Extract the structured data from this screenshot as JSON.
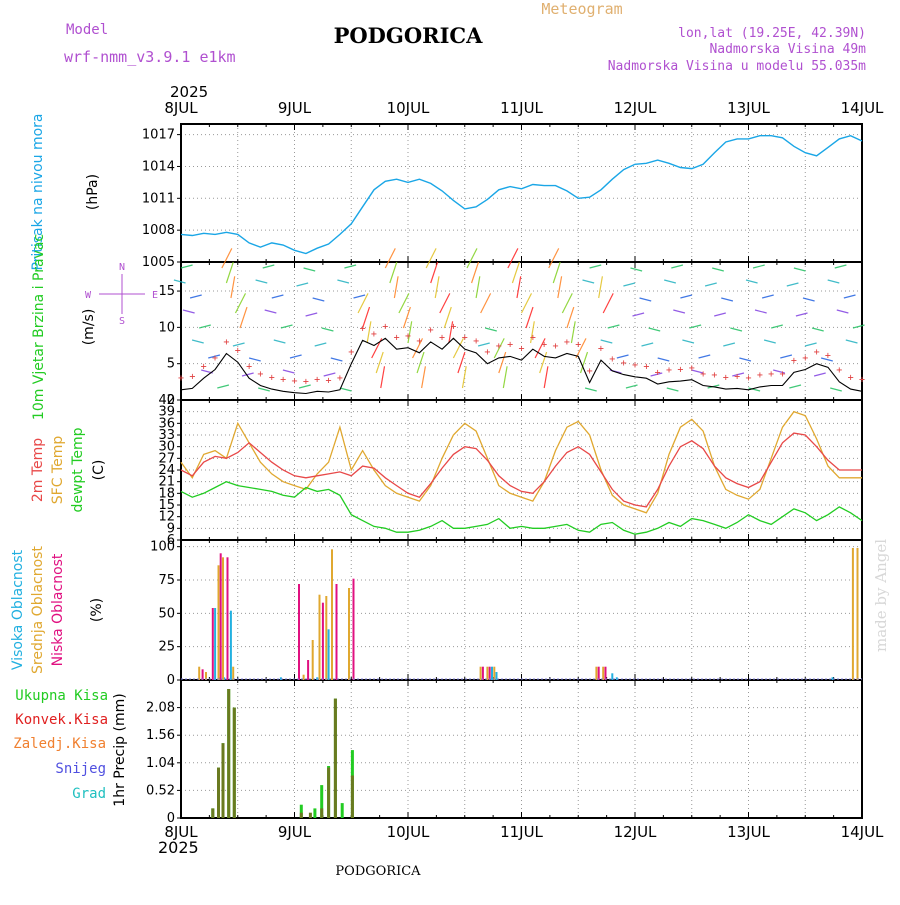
{
  "header": {
    "model_label": "Model",
    "model_name": "wrf-nmm_v3.9.1 e1km",
    "city": "PODGORICA",
    "meteogram": "Meteogram",
    "lonlat": "lon,lat (19.25E, 42.39N)",
    "elevation": "Nadmorska Visina 49m",
    "model_elevation": "Nadmorska Visina u modelu 55.035m",
    "year_top": "2025",
    "year_bottom": "2025",
    "footer_city": "PODGORICA",
    "credit": "made by Angel"
  },
  "colors": {
    "pressure": "#1aa6e6",
    "wind_speed": "#000000",
    "temp_2m": "#e84848",
    "temp_sfc": "#e0a830",
    "dewpoint": "#22cc22",
    "cloud_high": "#22b0e0",
    "cloud_mid": "#e0a830",
    "cloud_low": "#e01080",
    "precip_total": "#22cc22",
    "precip_conv": "#e02020",
    "precip_frozen": "#f08030",
    "precip_snow": "#5050e0",
    "precip_hail": "#20c0c0",
    "precip_bar": "#6a7a20",
    "grid": "#999999",
    "label_purple": "#b050d0"
  },
  "chart_data": [
    {
      "type": "line",
      "panel": "pressure",
      "ylabel_color": "Pritisak na nivou mora",
      "ylabel_unit": "(hPa)",
      "x_ticks": [
        "8JUL",
        "9JUL",
        "10JUL",
        "11JUL",
        "12JUL",
        "13JUL",
        "14JUL"
      ],
      "ylim": [
        1005,
        1018
      ],
      "y_ticks": [
        1005,
        1008,
        1011,
        1014,
        1017
      ],
      "grid": true,
      "series": [
        {
          "x": [
            0,
            0.1,
            0.2,
            0.3,
            0.4,
            0.5,
            0.6,
            0.7,
            0.8,
            0.9,
            1.0,
            1.1,
            1.2,
            1.3,
            1.4,
            1.5,
            1.6,
            1.7,
            1.8,
            1.9,
            2.0,
            2.1,
            2.2,
            2.3,
            2.4,
            2.5,
            2.6,
            2.7,
            2.8,
            2.9,
            3.0,
            3.1,
            3.2,
            3.3,
            3.4,
            3.5,
            3.6,
            3.7,
            3.8,
            3.9,
            4.0,
            4.1,
            4.2,
            4.3,
            4.4,
            4.5,
            4.6,
            4.7,
            4.8,
            4.9,
            5.0,
            5.1,
            5.2,
            5.3,
            5.4,
            5.5,
            5.6,
            5.7,
            5.8,
            5.9,
            6.0
          ],
          "values": [
            1007.6,
            1007.5,
            1007.7,
            1007.6,
            1007.8,
            1007.6,
            1006.8,
            1006.4,
            1006.8,
            1006.6,
            1006.1,
            1005.8,
            1006.3,
            1006.7,
            1007.6,
            1008.6,
            1010.2,
            1011.8,
            1012.6,
            1012.8,
            1012.5,
            1012.8,
            1012.4,
            1011.7,
            1010.8,
            1010.0,
            1010.2,
            1010.9,
            1011.8,
            1012.1,
            1011.9,
            1012.3,
            1012.2,
            1012.2,
            1011.7,
            1011.0,
            1011.1,
            1011.8,
            1012.8,
            1013.7,
            1014.2,
            1014.3,
            1014.6,
            1014.3,
            1013.9,
            1013.8,
            1014.2,
            1015.3,
            1016.3,
            1016.6,
            1016.6,
            1016.9,
            1016.9,
            1016.7,
            1015.9,
            1015.3,
            1015.0,
            1015.8,
            1016.6,
            1016.9,
            1016.4
          ]
        }
      ]
    },
    {
      "type": "line",
      "panel": "wind",
      "ylabel_color": "10m Vjetar Brzina i Pravac",
      "ylabel_unit": "(m/s)",
      "compass": "N",
      "compass_w": "W",
      "compass_e": "E",
      "compass_s": "S",
      "ylim": [
        0,
        19
      ],
      "y_ticks": [
        0,
        5,
        10,
        15
      ],
      "grid": true,
      "series": [
        {
          "name": "speed",
          "x": [
            0,
            0.1,
            0.2,
            0.3,
            0.4,
            0.5,
            0.6,
            0.7,
            0.8,
            0.9,
            1.0,
            1.1,
            1.2,
            1.3,
            1.4,
            1.5,
            1.6,
            1.7,
            1.8,
            1.9,
            2.0,
            2.1,
            2.2,
            2.3,
            2.4,
            2.5,
            2.6,
            2.7,
            2.8,
            2.9,
            3.0,
            3.1,
            3.2,
            3.3,
            3.4,
            3.5,
            3.6,
            3.7,
            3.8,
            3.9,
            4.0,
            4.1,
            4.2,
            4.3,
            4.4,
            4.5,
            4.6,
            4.7,
            4.8,
            4.9,
            5.0,
            5.1,
            5.2,
            5.3,
            5.4,
            5.5,
            5.6,
            5.7,
            5.8,
            5.9,
            6.0
          ],
          "values": [
            1.4,
            1.6,
            3.0,
            4.2,
            6.4,
            5.2,
            3.0,
            2.0,
            1.5,
            1.2,
            1.0,
            0.9,
            1.2,
            1.1,
            1.4,
            5.0,
            8.2,
            7.5,
            8.5,
            7.0,
            7.2,
            6.5,
            8.0,
            7.0,
            8.5,
            7.0,
            6.5,
            5.0,
            5.8,
            6.0,
            5.5,
            7.0,
            6.0,
            5.8,
            6.4,
            6.0,
            2.4,
            5.5,
            4.0,
            3.5,
            3.2,
            3.0,
            2.2,
            2.5,
            2.6,
            2.8,
            2.0,
            1.8,
            1.5,
            1.6,
            1.4,
            1.8,
            2.0,
            2.0,
            3.8,
            4.2,
            5.0,
            4.5,
            2.5,
            1.5,
            1.2
          ]
        }
      ]
    },
    {
      "type": "line",
      "panel": "temperature",
      "ylabel_1": "2m Temp",
      "ylabel_2": "SFC Temp",
      "ylabel_3": "dewpt Temp",
      "ylabel_unit": "(C)",
      "ylim": [
        6,
        42
      ],
      "y_ticks": [
        6,
        9,
        12,
        15,
        18,
        21,
        24,
        27,
        30,
        33,
        36,
        39,
        42
      ],
      "grid": true,
      "series": [
        {
          "name": "2m Temp",
          "x": [
            0,
            0.1,
            0.2,
            0.3,
            0.4,
            0.5,
            0.6,
            0.7,
            0.8,
            0.9,
            1.0,
            1.1,
            1.2,
            1.3,
            1.4,
            1.5,
            1.6,
            1.7,
            1.8,
            1.9,
            2.0,
            2.1,
            2.2,
            2.3,
            2.4,
            2.5,
            2.6,
            2.7,
            2.8,
            2.9,
            3.0,
            3.1,
            3.2,
            3.3,
            3.4,
            3.5,
            3.6,
            3.7,
            3.8,
            3.9,
            4.0,
            4.1,
            4.2,
            4.3,
            4.4,
            4.5,
            4.6,
            4.7,
            4.8,
            4.9,
            5.0,
            5.1,
            5.2,
            5.3,
            5.4,
            5.5,
            5.6,
            5.7,
            5.8,
            5.9,
            6.0
          ],
          "values": [
            24.0,
            22.5,
            26.0,
            27.5,
            27.0,
            28.5,
            31.0,
            28.5,
            26.0,
            24.0,
            22.5,
            22.0,
            22.5,
            23.0,
            23.5,
            22.5,
            25.0,
            24.5,
            22.0,
            20.0,
            18.0,
            17.0,
            20.5,
            24.5,
            28.0,
            30.0,
            29.5,
            26.5,
            22.5,
            20.0,
            18.5,
            18.0,
            21.0,
            25.0,
            28.5,
            30.0,
            28.0,
            23.5,
            19.0,
            16.0,
            15.0,
            14.5,
            19.0,
            25.0,
            30.0,
            31.5,
            29.5,
            25.0,
            22.0,
            20.5,
            19.5,
            21.0,
            26.0,
            31.0,
            33.5,
            33.0,
            30.0,
            26.5,
            24.0,
            24.0,
            24.0
          ]
        },
        {
          "name": "SFC Temp",
          "x": [
            0,
            0.1,
            0.2,
            0.3,
            0.4,
            0.5,
            0.6,
            0.7,
            0.8,
            0.9,
            1.0,
            1.1,
            1.2,
            1.3,
            1.4,
            1.5,
            1.6,
            1.7,
            1.8,
            1.9,
            2.0,
            2.1,
            2.2,
            2.3,
            2.4,
            2.5,
            2.6,
            2.7,
            2.8,
            2.9,
            3.0,
            3.1,
            3.2,
            3.3,
            3.4,
            3.5,
            3.6,
            3.7,
            3.8,
            3.9,
            4.0,
            4.1,
            4.2,
            4.3,
            4.4,
            4.5,
            4.6,
            4.7,
            4.8,
            4.9,
            5.0,
            5.1,
            5.2,
            5.3,
            5.4,
            5.5,
            5.6,
            5.7,
            5.8,
            5.9,
            6.0
          ],
          "values": [
            26.0,
            22.0,
            28.0,
            29.0,
            27.0,
            36.0,
            31.0,
            26.0,
            23.0,
            21.0,
            20.0,
            19.0,
            23.0,
            26.0,
            35.0,
            24.0,
            29.0,
            24.0,
            20.0,
            18.0,
            17.0,
            16.0,
            20.0,
            27.0,
            33.0,
            36.0,
            34.0,
            27.0,
            20.0,
            18.0,
            17.0,
            16.0,
            21.0,
            29.0,
            35.0,
            36.5,
            33.0,
            24.0,
            17.5,
            15.0,
            14.0,
            13.0,
            18.0,
            28.0,
            35.0,
            37.0,
            34.0,
            25.0,
            19.0,
            17.5,
            16.5,
            19.0,
            27.0,
            35.0,
            39.0,
            38.0,
            32.0,
            25.0,
            22.0,
            22.0,
            22.0
          ]
        },
        {
          "name": "dewpt Temp",
          "x": [
            0,
            0.1,
            0.2,
            0.3,
            0.4,
            0.5,
            0.6,
            0.7,
            0.8,
            0.9,
            1.0,
            1.1,
            1.2,
            1.3,
            1.4,
            1.5,
            1.6,
            1.7,
            1.8,
            1.9,
            2.0,
            2.1,
            2.2,
            2.3,
            2.4,
            2.5,
            2.6,
            2.7,
            2.8,
            2.9,
            3.0,
            3.1,
            3.2,
            3.3,
            3.4,
            3.5,
            3.6,
            3.7,
            3.8,
            3.9,
            4.0,
            4.1,
            4.2,
            4.3,
            4.4,
            4.5,
            4.6,
            4.7,
            4.8,
            4.9,
            5.0,
            5.1,
            5.2,
            5.3,
            5.4,
            5.5,
            5.6,
            5.7,
            5.8,
            5.9,
            6.0
          ],
          "values": [
            18.5,
            17.0,
            18.0,
            19.5,
            21.0,
            20.0,
            19.5,
            19.0,
            18.5,
            17.5,
            17.0,
            19.5,
            18.5,
            19.0,
            17.5,
            12.5,
            11.0,
            9.5,
            9.0,
            8.0,
            8.0,
            8.5,
            9.5,
            11.0,
            9.0,
            9.0,
            9.5,
            10.0,
            11.5,
            9.0,
            9.5,
            9.0,
            9.0,
            9.5,
            10.0,
            8.5,
            8.0,
            10.0,
            10.5,
            8.5,
            7.5,
            8.0,
            9.0,
            10.5,
            9.5,
            11.5,
            11.0,
            10.0,
            9.0,
            10.5,
            12.5,
            11.0,
            10.0,
            12.0,
            14.0,
            13.0,
            11.0,
            12.5,
            14.5,
            13.0,
            11.0
          ]
        }
      ]
    },
    {
      "type": "bar",
      "panel": "cloud",
      "ylabel_1": "Visoka Oblacnost",
      "ylabel_2": "Srednja Oblacnost",
      "ylabel_3": "Niska Oblacnost",
      "ylabel_unit": "(%)",
      "ylim": [
        0,
        105
      ],
      "y_ticks": [
        0,
        25,
        50,
        75,
        100
      ],
      "grid": true,
      "series": [
        {
          "name": "Visoka",
          "x": [
            0.3,
            0.34,
            0.38,
            0.44,
            0.88,
            1.2,
            1.3,
            2.74,
            2.78,
            3.8,
            3.84,
            5.74
          ],
          "values": [
            54,
            2,
            2,
            52,
            2,
            2,
            38,
            10,
            6,
            5,
            2,
            2
          ]
        },
        {
          "name": "Srednja",
          "x": [
            0.16,
            0.22,
            0.33,
            0.37,
            0.46,
            1.08,
            1.16,
            1.22,
            1.28,
            1.33,
            1.48,
            2.64,
            2.7,
            2.76,
            3.66,
            3.72,
            5.92,
            5.96
          ],
          "values": [
            10,
            6,
            86,
            92,
            10,
            4,
            30,
            64,
            63,
            98,
            69,
            10,
            10,
            10,
            10,
            10,
            99,
            99
          ]
        },
        {
          "name": "Niska",
          "x": [
            0.19,
            0.28,
            0.35,
            0.41,
            1.04,
            1.12,
            1.25,
            1.37,
            1.52,
            2.66,
            2.72,
            3.68,
            3.74
          ],
          "values": [
            8,
            54,
            95,
            92,
            72,
            15,
            58,
            72,
            76,
            10,
            10,
            10,
            10
          ]
        }
      ]
    },
    {
      "type": "bar",
      "panel": "precip",
      "ylabel_1": "Ukupna Kisa",
      "ylabel_2": "Konvek.Kisa",
      "ylabel_3": "Zaledj.Kisa",
      "ylabel_4": "Snijeg",
      "ylabel_5": "Grad",
      "ylabel_unit": "1hr Precip (mm)",
      "ylim": [
        0,
        2.6
      ],
      "y_ticks": [
        0,
        0.52,
        1.04,
        1.56,
        2.08
      ],
      "grid": true,
      "series": [
        {
          "name": "Ukupna Kisa",
          "x": [
            0.28,
            0.33,
            0.37,
            0.42,
            0.47,
            1.06,
            1.18,
            1.24,
            1.3,
            1.36,
            1.42,
            1.51
          ],
          "values": [
            0.18,
            0.95,
            1.41,
            2.43,
            2.08,
            0.25,
            0.18,
            0.62,
            0.98,
            2.25,
            0.28,
            1.28
          ]
        },
        {
          "name": "Konvek.Kisa",
          "x": [
            0.28,
            0.33,
            0.37,
            0.42,
            0.47,
            1.06,
            1.14,
            1.24,
            1.3,
            1.36,
            1.51
          ],
          "values": [
            0.18,
            0.95,
            1.41,
            2.43,
            2.08,
            0.1,
            0.1,
            0.18,
            0.95,
            2.25,
            0.8
          ]
        }
      ]
    }
  ]
}
